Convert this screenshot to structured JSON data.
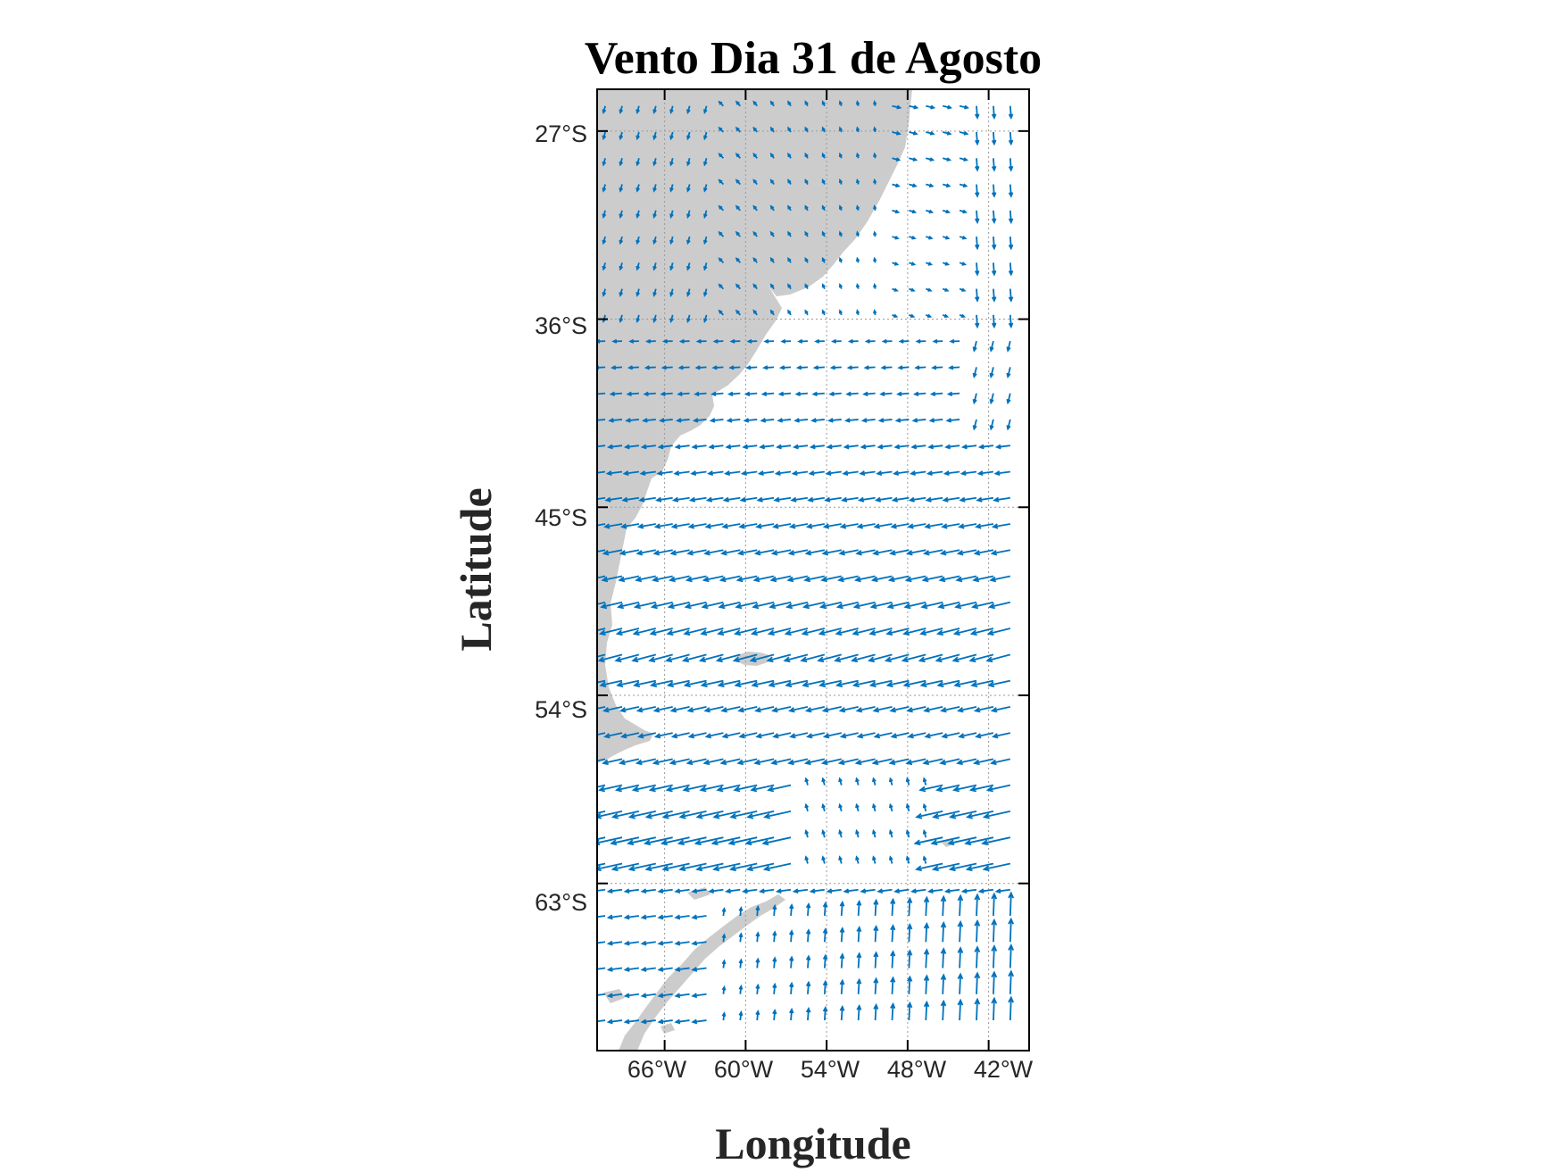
{
  "map": {
    "title": "Vento Dia 31 de Agosto",
    "xlabel": "Longitude",
    "ylabel": "Latitude",
    "lon_range": [
      -71,
      -39
    ],
    "lat_range": [
      -71,
      -25
    ],
    "lon_ticks": [
      -66,
      -60,
      -54,
      -48,
      -42
    ],
    "lat_ticks": [
      -27,
      -36,
      -45,
      -54,
      -63
    ],
    "lon_tick_labels": [
      "66°W",
      "60°W",
      "54°W",
      "48°W",
      "42°W"
    ],
    "lat_tick_labels": [
      "27°S",
      "36°S",
      "45°S",
      "54°S",
      "63°S"
    ],
    "grid": true,
    "land_color": "#cccccc",
    "vector_color": "#0072bd",
    "frame_color": "#000000",
    "vector_field": "wind",
    "region_features": [
      "south-america-landmass",
      "malvinas-islands",
      "antarctic-peninsula"
    ]
  }
}
